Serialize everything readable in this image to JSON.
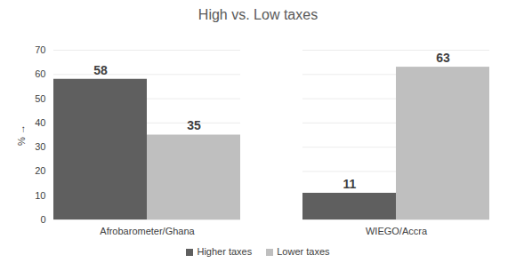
{
  "chart_data": {
    "type": "bar",
    "title": "High vs. Low taxes",
    "categories": [
      "Afrobarometer/Ghana",
      "WIEGO/Accra"
    ],
    "series": [
      {
        "name": "Higher taxes",
        "color": "#5f5f5f",
        "values": [
          58,
          11
        ]
      },
      {
        "name": "Lower taxes",
        "color": "#bfbfbf",
        "values": [
          35,
          63
        ]
      }
    ],
    "y_label": "%",
    "ylim": [
      0,
      70
    ],
    "yticks": [
      0,
      10,
      20,
      30,
      40,
      50,
      60,
      70
    ],
    "grid": true,
    "data_labels": true,
    "legend": "bottom"
  }
}
